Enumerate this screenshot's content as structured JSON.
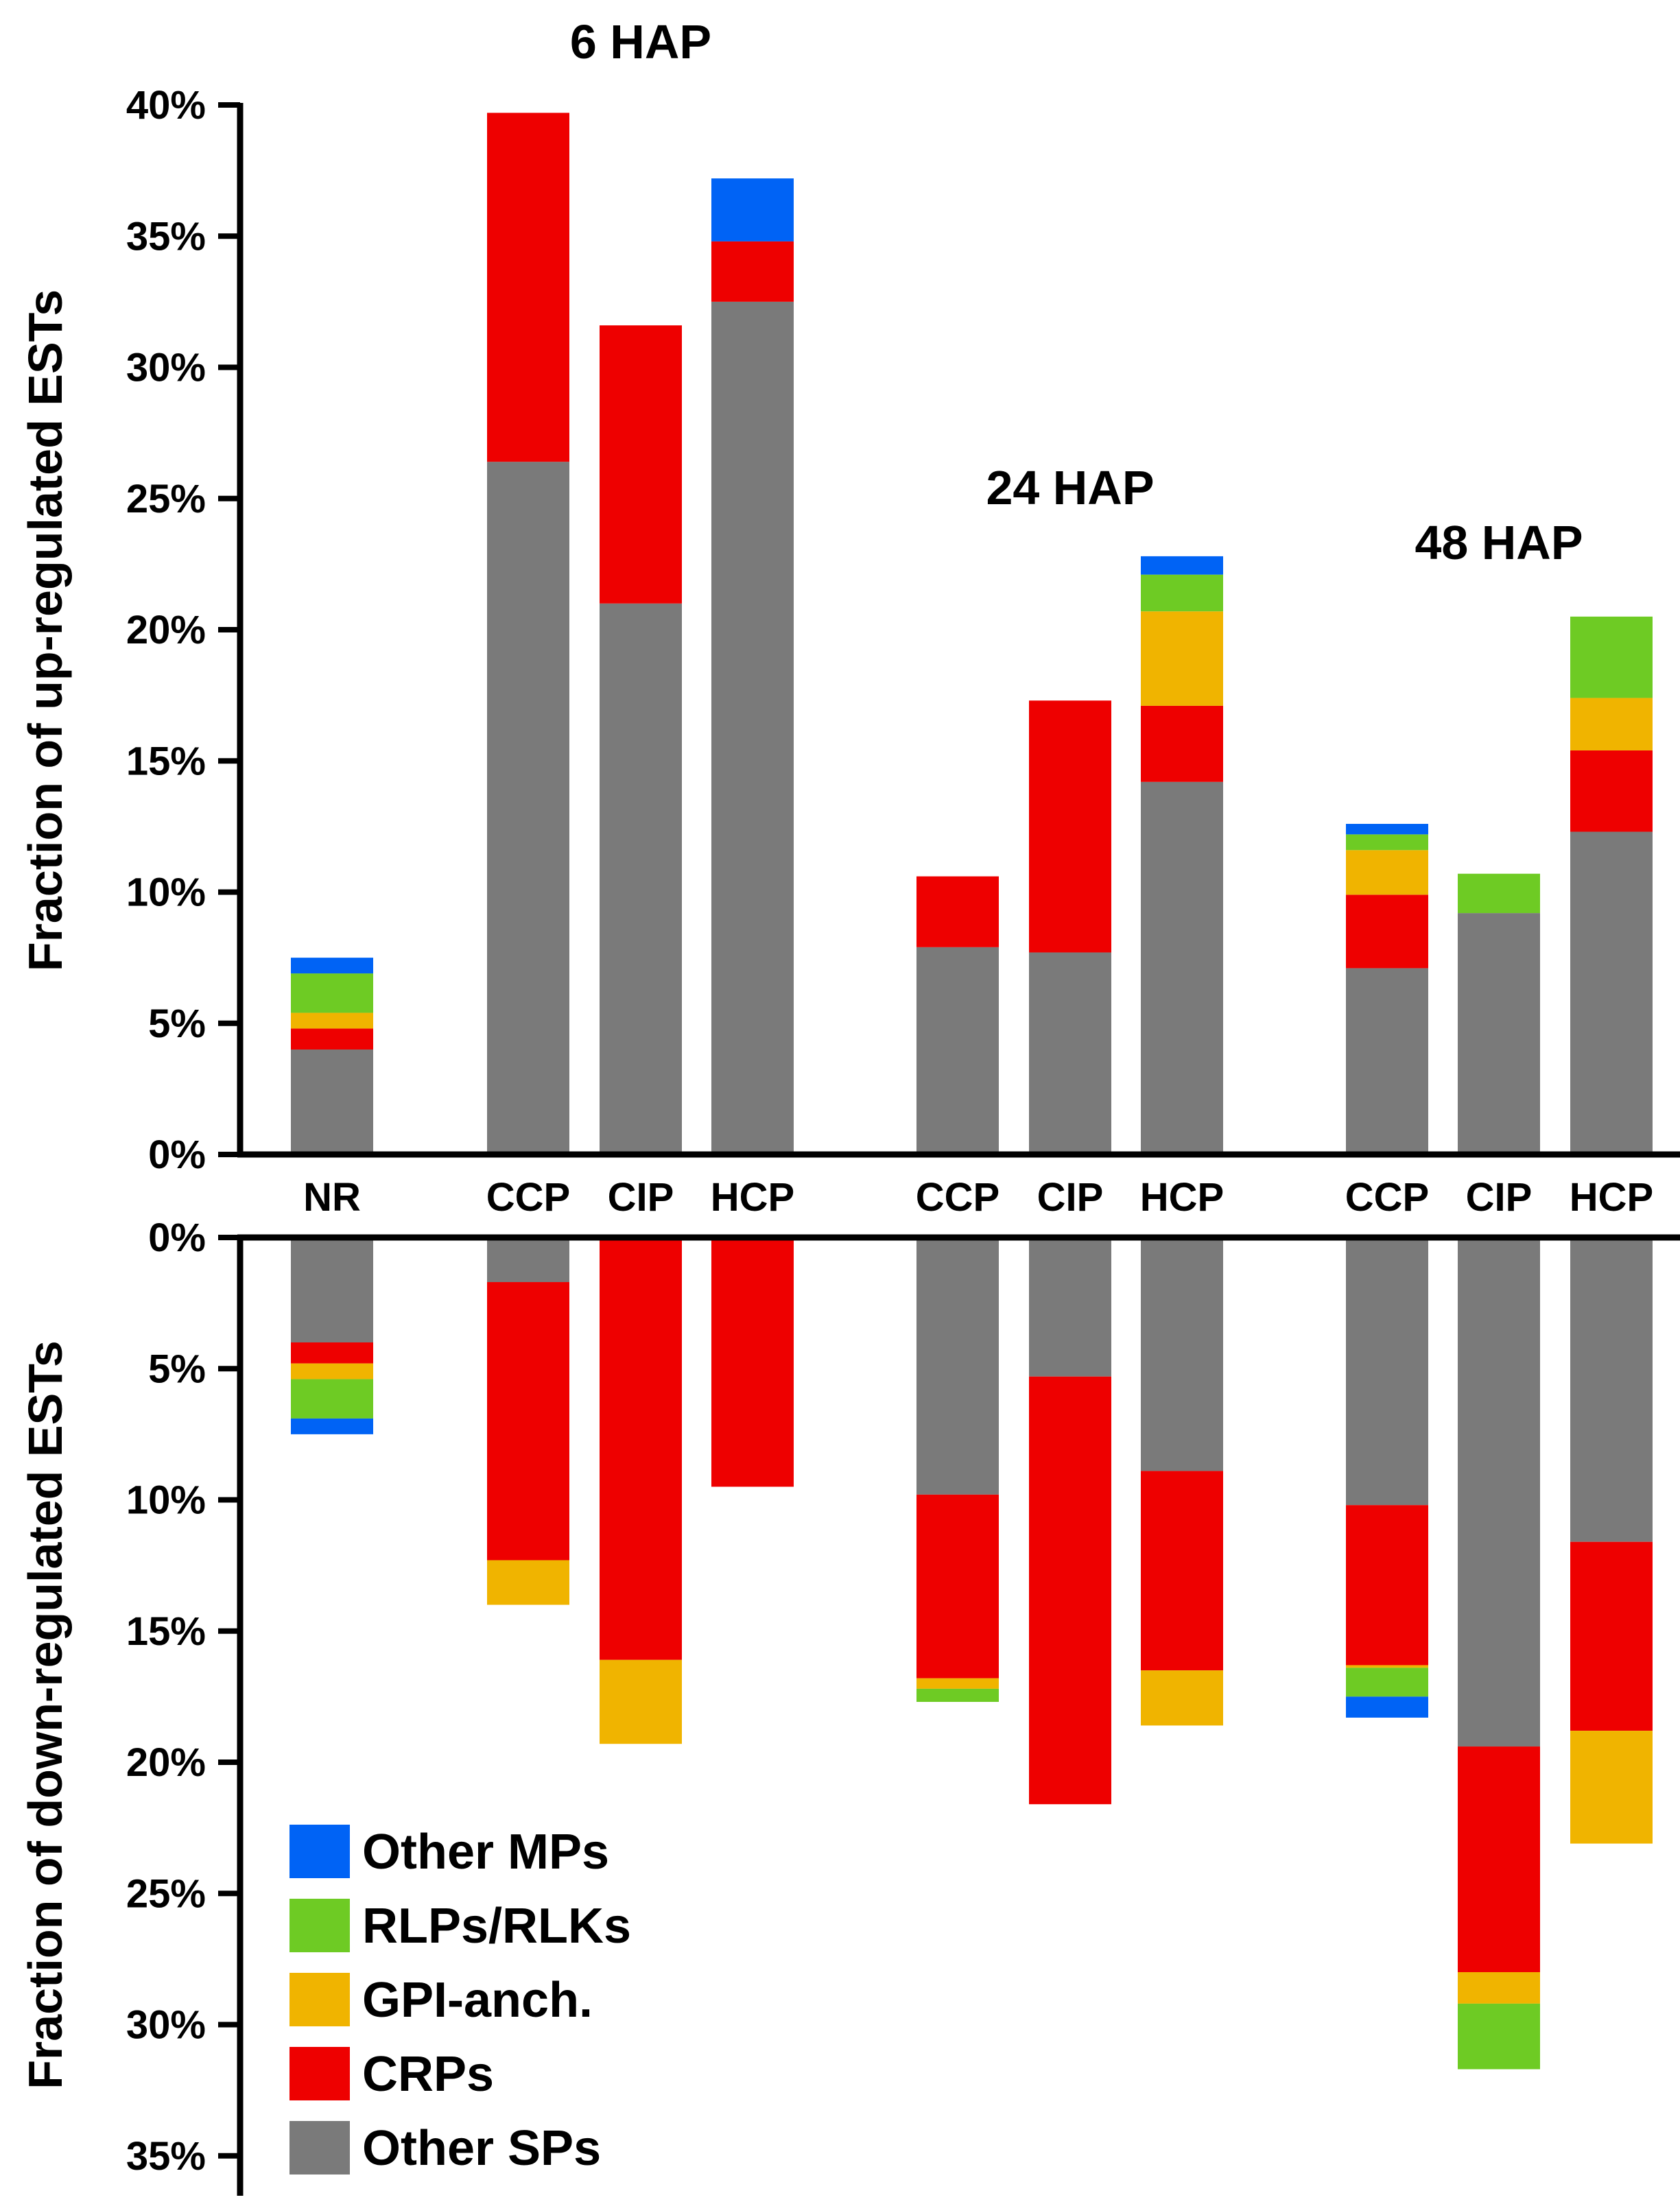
{
  "chart_data": {
    "type": "bar",
    "stacked": true,
    "layout": "mirrored up/down panels",
    "colors": {
      "Other SPs": "#7a7a7a",
      "CRPs": "#ee0000",
      "GPI-anch.": "#f0b400",
      "RLPs/RLKs": "#6ecb24",
      "Other MPs": "#0063f5"
    },
    "stack_order": [
      "Other SPs",
      "CRPs",
      "GPI-anch.",
      "RLPs/RLKs",
      "Other MPs"
    ],
    "groups": [
      {
        "label": "6 HAP",
        "categories": [
          "CCP",
          "CIP",
          "HCP"
        ]
      },
      {
        "label": "24 HAP",
        "categories": [
          "CCP",
          "CIP",
          "HCP"
        ]
      },
      {
        "label": "48 HAP",
        "categories": [
          "CCP",
          "CIP",
          "HCP"
        ]
      }
    ],
    "bars": [
      {
        "category": "NR",
        "group": "",
        "up": {
          "Other SPs": 4.0,
          "CRPs": 0.8,
          "GPI-anch.": 0.6,
          "RLPs/RLKs": 1.5,
          "Other MPs": 0.6
        },
        "down": {
          "Other SPs": 4.0,
          "CRPs": 0.8,
          "GPI-anch.": 0.6,
          "RLPs/RLKs": 1.5,
          "Other MPs": 0.6
        }
      },
      {
        "category": "CCP",
        "group": "6 HAP",
        "up": {
          "Other SPs": 26.4,
          "CRPs": 13.3,
          "GPI-anch.": 0,
          "RLPs/RLKs": 0,
          "Other MPs": 0
        },
        "down": {
          "Other SPs": 1.7,
          "CRPs": 10.6,
          "GPI-anch.": 1.7,
          "RLPs/RLKs": 0,
          "Other MPs": 0
        }
      },
      {
        "category": "CIP",
        "group": "6 HAP",
        "up": {
          "Other SPs": 21.0,
          "CRPs": 10.6,
          "GPI-anch.": 0,
          "RLPs/RLKs": 0,
          "Other MPs": 0
        },
        "down": {
          "Other SPs": 0,
          "CRPs": 16.1,
          "GPI-anch.": 3.2,
          "RLPs/RLKs": 0,
          "Other MPs": 0
        }
      },
      {
        "category": "HCP",
        "group": "6 HAP",
        "up": {
          "Other SPs": 32.5,
          "CRPs": 2.3,
          "GPI-anch.": 0,
          "RLPs/RLKs": 0,
          "Other MPs": 2.4
        },
        "down": {
          "Other SPs": 0,
          "CRPs": 9.5,
          "GPI-anch.": 0,
          "RLPs/RLKs": 0,
          "Other MPs": 0
        }
      },
      {
        "category": "CCP",
        "group": "24 HAP",
        "up": {
          "Other SPs": 7.9,
          "CRPs": 2.7,
          "GPI-anch.": 0,
          "RLPs/RLKs": 0,
          "Other MPs": 0
        },
        "down": {
          "Other SPs": 9.8,
          "CRPs": 7.0,
          "GPI-anch.": 0.4,
          "RLPs/RLKs": 0.5,
          "Other MPs": 0
        }
      },
      {
        "category": "CIP",
        "group": "24 HAP",
        "up": {
          "Other SPs": 7.7,
          "CRPs": 9.6,
          "GPI-anch.": 0,
          "RLPs/RLKs": 0,
          "Other MPs": 0
        },
        "down": {
          "Other SPs": 5.3,
          "CRPs": 16.3,
          "GPI-anch.": 0,
          "RLPs/RLKs": 0,
          "Other MPs": 0
        }
      },
      {
        "category": "HCP",
        "group": "24 HAP",
        "up": {
          "Other SPs": 14.2,
          "CRPs": 2.9,
          "GPI-anch.": 3.6,
          "RLPs/RLKs": 1.4,
          "Other MPs": 0.7
        },
        "down": {
          "Other SPs": 8.9,
          "CRPs": 7.6,
          "GPI-anch.": 2.1,
          "RLPs/RLKs": 0,
          "Other MPs": 0
        }
      },
      {
        "category": "CCP",
        "group": "48 HAP",
        "up": {
          "Other SPs": 7.1,
          "CRPs": 2.8,
          "GPI-anch.": 1.7,
          "RLPs/RLKs": 0.6,
          "Other MPs": 0.4
        },
        "down": {
          "Other SPs": 10.2,
          "CRPs": 6.1,
          "GPI-anch.": 0.1,
          "RLPs/RLKs": 1.1,
          "Other MPs": 0.8
        }
      },
      {
        "category": "CIP",
        "group": "48 HAP",
        "up": {
          "Other SPs": 9.2,
          "CRPs": 0,
          "GPI-anch.": 0,
          "RLPs/RLKs": 1.5,
          "Other MPs": 0
        },
        "down": {
          "Other SPs": 19.4,
          "CRPs": 8.6,
          "GPI-anch.": 1.2,
          "RLPs/RLKs": 2.5,
          "Other MPs": 0
        }
      },
      {
        "category": "HCP",
        "group": "48 HAP",
        "up": {
          "Other SPs": 12.3,
          "CRPs": 3.1,
          "GPI-anch.": 2.0,
          "RLPs/RLKs": 3.1,
          "Other MPs": 0
        },
        "down": {
          "Other SPs": 11.6,
          "CRPs": 7.2,
          "GPI-anch.": 4.3,
          "RLPs/RLKs": 0,
          "Other MPs": 0
        }
      }
    ],
    "up_axis": {
      "label": "Fraction of up-regulated ESTs",
      "ylim": [
        0,
        40
      ],
      "ticks": [
        "0%",
        "5%",
        "10%",
        "15%",
        "20%",
        "25%",
        "30%",
        "35%",
        "40%"
      ]
    },
    "down_axis": {
      "label": "Fraction of down-regulated ESTs",
      "ylim": [
        0,
        35
      ],
      "ticks": [
        "0%",
        "5%",
        "10%",
        "15%",
        "20%",
        "25%",
        "30%",
        "35%"
      ]
    },
    "legend": {
      "placement": "bottom-left",
      "entries": [
        "Other MPs",
        "RLPs/RLKs",
        "GPI-anch.",
        "CRPs",
        "Other SPs"
      ]
    }
  }
}
